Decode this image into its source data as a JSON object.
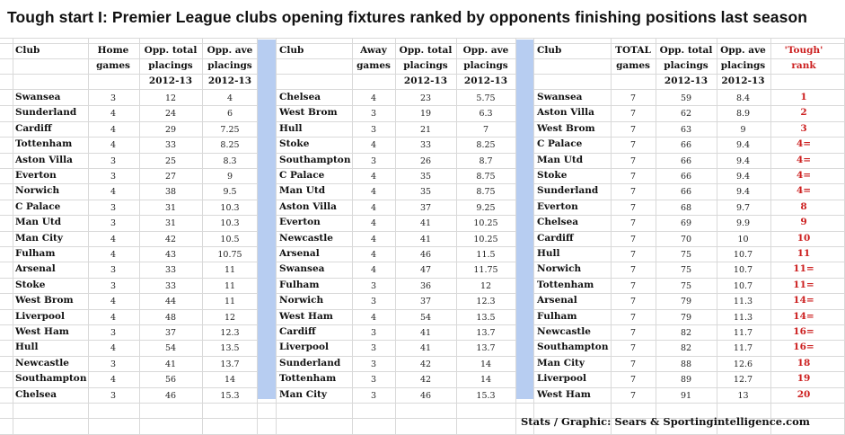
{
  "title": "Tough start I: Premier League clubs opening fixtures ranked by opponents finishing positions last season",
  "credit": "Stats / Graphic: Sears & Sportingintelligence.com",
  "colors": {
    "separator": "#b7cdf1",
    "rank_red": "#cc1f1f"
  },
  "home": {
    "headers": {
      "club": "Club",
      "games": [
        "Home",
        "games"
      ],
      "total": [
        "Opp. total",
        "placings",
        "2012-13"
      ],
      "ave": [
        "Opp. ave",
        "placings",
        "2012-13"
      ]
    },
    "rows": [
      [
        "Swansea",
        "3",
        "12",
        "4"
      ],
      [
        "Sunderland",
        "4",
        "24",
        "6"
      ],
      [
        "Cardiff",
        "4",
        "29",
        "7.25"
      ],
      [
        "Tottenham",
        "4",
        "33",
        "8.25"
      ],
      [
        "Aston Villa",
        "3",
        "25",
        "8.3"
      ],
      [
        "Everton",
        "3",
        "27",
        "9"
      ],
      [
        "Norwich",
        "4",
        "38",
        "9.5"
      ],
      [
        "C Palace",
        "3",
        "31",
        "10.3"
      ],
      [
        "Man Utd",
        "3",
        "31",
        "10.3"
      ],
      [
        "Man City",
        "4",
        "42",
        "10.5"
      ],
      [
        "Fulham",
        "4",
        "43",
        "10.75"
      ],
      [
        "Arsenal",
        "3",
        "33",
        "11"
      ],
      [
        "Stoke",
        "3",
        "33",
        "11"
      ],
      [
        "West Brom",
        "4",
        "44",
        "11"
      ],
      [
        "Liverpool",
        "4",
        "48",
        "12"
      ],
      [
        "West Ham",
        "3",
        "37",
        "12.3"
      ],
      [
        "Hull",
        "4",
        "54",
        "13.5"
      ],
      [
        "Newcastle",
        "3",
        "41",
        "13.7"
      ],
      [
        "Southampton",
        "4",
        "56",
        "14"
      ],
      [
        "Chelsea",
        "3",
        "46",
        "15.3"
      ]
    ]
  },
  "away": {
    "headers": {
      "club": "Club",
      "games": [
        "Away",
        "games"
      ],
      "total": [
        "Opp. total",
        "placings",
        "2012-13"
      ],
      "ave": [
        "Opp. ave",
        "placings",
        "2012-13"
      ]
    },
    "rows": [
      [
        "Chelsea",
        "4",
        "23",
        "5.75"
      ],
      [
        "West Brom",
        "3",
        "19",
        "6.3"
      ],
      [
        "Hull",
        "3",
        "21",
        "7"
      ],
      [
        "Stoke",
        "4",
        "33",
        "8.25"
      ],
      [
        "Southampton",
        "3",
        "26",
        "8.7"
      ],
      [
        "C Palace",
        "4",
        "35",
        "8.75"
      ],
      [
        "Man Utd",
        "4",
        "35",
        "8.75"
      ],
      [
        "Aston Villa",
        "4",
        "37",
        "9.25"
      ],
      [
        "Everton",
        "4",
        "41",
        "10.25"
      ],
      [
        "Newcastle",
        "4",
        "41",
        "10.25"
      ],
      [
        "Arsenal",
        "4",
        "46",
        "11.5"
      ],
      [
        "Swansea",
        "4",
        "47",
        "11.75"
      ],
      [
        "Fulham",
        "3",
        "36",
        "12"
      ],
      [
        "Norwich",
        "3",
        "37",
        "12.3"
      ],
      [
        "West Ham",
        "4",
        "54",
        "13.5"
      ],
      [
        "Cardiff",
        "3",
        "41",
        "13.7"
      ],
      [
        "Liverpool",
        "3",
        "41",
        "13.7"
      ],
      [
        "Sunderland",
        "3",
        "42",
        "14"
      ],
      [
        "Tottenham",
        "3",
        "42",
        "14"
      ],
      [
        "Man City",
        "3",
        "46",
        "15.3"
      ]
    ]
  },
  "total": {
    "headers": {
      "club": "Club",
      "games": [
        "TOTAL",
        "games"
      ],
      "total": [
        "Opp. total",
        "placings",
        "2012-13"
      ],
      "ave": [
        "Opp. ave",
        "placings",
        "2012-13"
      ],
      "rank": [
        "'Tough'",
        "rank"
      ]
    },
    "rows": [
      [
        "Swansea",
        "7",
        "59",
        "8.4",
        "1"
      ],
      [
        "Aston Villa",
        "7",
        "62",
        "8.9",
        "2"
      ],
      [
        "West Brom",
        "7",
        "63",
        "9",
        "3"
      ],
      [
        "C Palace",
        "7",
        "66",
        "9.4",
        "4="
      ],
      [
        "Man Utd",
        "7",
        "66",
        "9.4",
        "4="
      ],
      [
        "Stoke",
        "7",
        "66",
        "9.4",
        "4="
      ],
      [
        "Sunderland",
        "7",
        "66",
        "9.4",
        "4="
      ],
      [
        "Everton",
        "7",
        "68",
        "9.7",
        "8"
      ],
      [
        "Chelsea",
        "7",
        "69",
        "9.9",
        "9"
      ],
      [
        "Cardiff",
        "7",
        "70",
        "10",
        "10"
      ],
      [
        "Hull",
        "7",
        "75",
        "10.7",
        "11"
      ],
      [
        "Norwich",
        "7",
        "75",
        "10.7",
        "11="
      ],
      [
        "Tottenham",
        "7",
        "75",
        "10.7",
        "11="
      ],
      [
        "Arsenal",
        "7",
        "79",
        "11.3",
        "14="
      ],
      [
        "Fulham",
        "7",
        "79",
        "11.3",
        "14="
      ],
      [
        "Newcastle",
        "7",
        "82",
        "11.7",
        "16="
      ],
      [
        "Southampton",
        "7",
        "82",
        "11.7",
        "16="
      ],
      [
        "Man City",
        "7",
        "88",
        "12.6",
        "18"
      ],
      [
        "Liverpool",
        "7",
        "89",
        "12.7",
        "19"
      ],
      [
        "West Ham",
        "7",
        "91",
        "13",
        "20"
      ]
    ]
  }
}
